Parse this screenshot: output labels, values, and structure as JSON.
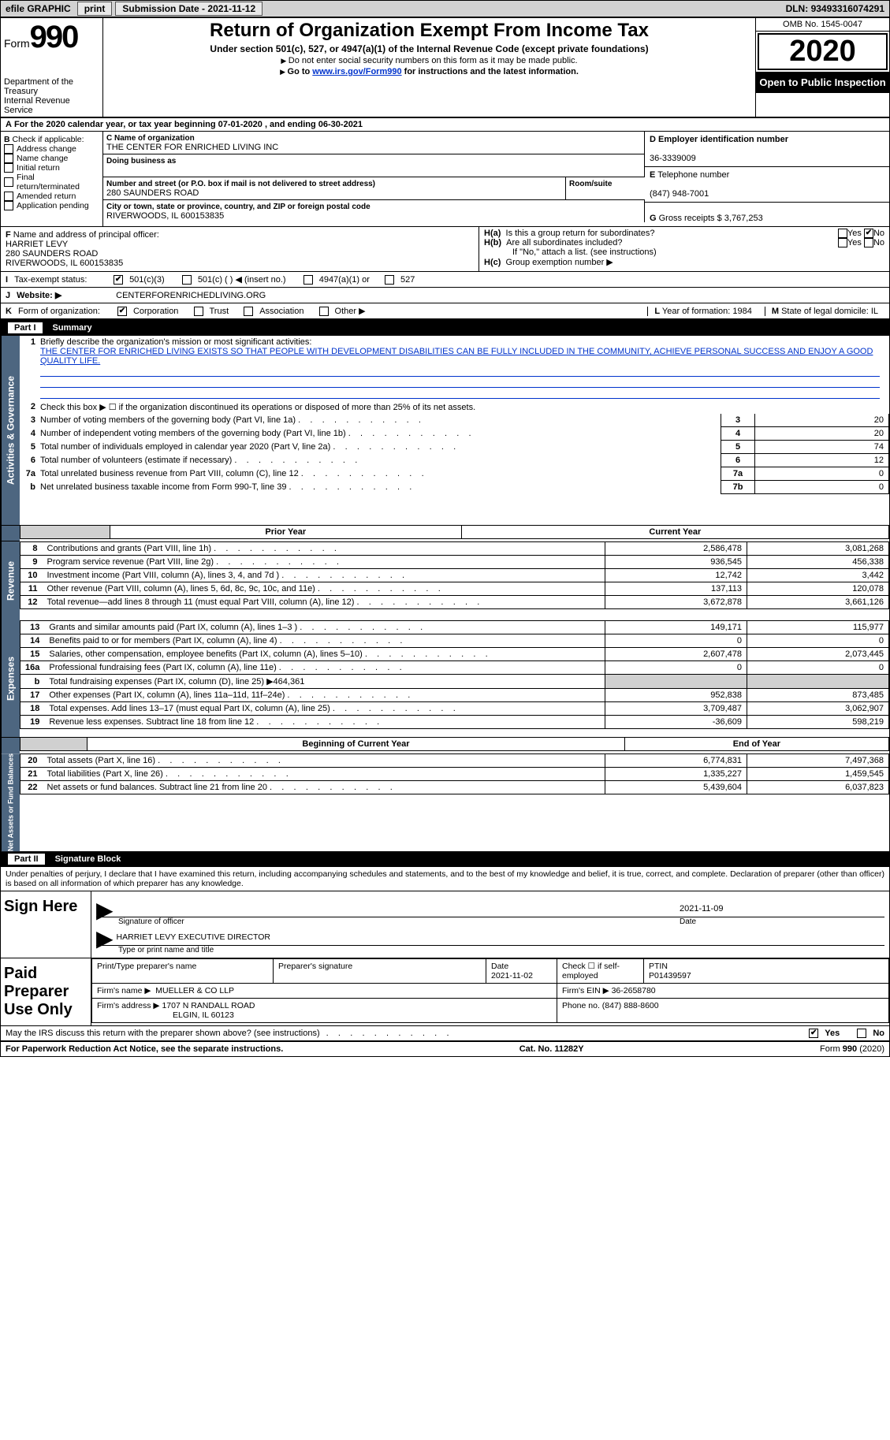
{
  "top_bar": {
    "efile_label": "efile GRAPHIC",
    "print_btn": "print",
    "sub_date_label": "Submission Date - ",
    "sub_date": "2021-11-12",
    "dln_label": "DLN: ",
    "dln": "93493316074291"
  },
  "header": {
    "form_label": "Form",
    "form_num": "990",
    "dept": "Department of the Treasury",
    "irs": "Internal Revenue Service",
    "title": "Return of Organization Exempt From Income Tax",
    "sub1": "Under section 501(c), 527, or 4947(a)(1) of the Internal Revenue Code (except private foundations)",
    "sub2": "Do not enter social security numbers on this form as it may be made public.",
    "sub3_pre": "Go to ",
    "sub3_link": "www.irs.gov/Form990",
    "sub3_post": " for instructions and the latest information.",
    "omb": "OMB No. 1545-0047",
    "tax_year": "2020",
    "open": "Open to Public Inspection"
  },
  "period_line": "For the 2020 calendar year, or tax year beginning 07-01-2020     , and ending 06-30-2021",
  "box_b": {
    "lab": "Check if applicable:",
    "items": [
      "Address change",
      "Name change",
      "Initial return",
      "Final return/terminated",
      "Amended return",
      "Application pending"
    ],
    "b_letter": "B"
  },
  "box_c": {
    "name_lab": "Name of organization",
    "name": "THE CENTER FOR ENRICHED LIVING INC",
    "dba_lab": "Doing business as",
    "addr_lab": "Number and street (or P.O. box if mail is not delivered to street address)",
    "room_lab": "Room/suite",
    "addr": "280 SAUNDERS ROAD",
    "city_lab": "City or town, state or province, country, and ZIP or foreign postal code",
    "city": "RIVERWOODS, IL  600153835",
    "c_letter": "C"
  },
  "box_d": {
    "lab": "Employer identification number",
    "val": "36-3339009",
    "letter": "D"
  },
  "box_e": {
    "lab": "Telephone number",
    "val": "(847) 948-7001",
    "letter": "E"
  },
  "box_g": {
    "lab": "Gross receipts $ ",
    "val": "3,767,253",
    "letter": "G"
  },
  "box_f": {
    "lab": "Name and address of principal officer:",
    "name": "HARRIET LEVY",
    "addr1": "280 SAUNDERS ROAD",
    "addr2": "RIVERWOODS, IL  600153835",
    "letter": "F"
  },
  "box_h": {
    "a_lab": "Is this a group return for subordinates?",
    "a_letter": "H(a)",
    "b_lab": "Are all subordinates included?",
    "b_letter": "H(b)",
    "b_note": "If \"No,\" attach a list. (see instructions)",
    "c_lab": "Group exemption number ▶",
    "c_letter": "H(c)",
    "yes": "Yes",
    "no": "No"
  },
  "box_i": {
    "letter": "I",
    "lab": "Tax-exempt status:",
    "opts": [
      "501(c)(3)",
      "501(c) (   ) ◀ (insert no.)",
      "4947(a)(1) or",
      "527"
    ]
  },
  "box_j": {
    "letter": "J",
    "lab": "Website: ▶",
    "val": "CENTERFORENRICHEDLIVING.ORG"
  },
  "box_k": {
    "letter": "K",
    "lab": "Form of organization:",
    "opts": [
      "Corporation",
      "Trust",
      "Association",
      "Other ▶"
    ]
  },
  "box_l": {
    "letter": "L",
    "txt": "Year of formation: 1984"
  },
  "box_m": {
    "letter": "M",
    "txt": "State of legal domicile: IL"
  },
  "part1": {
    "part": "Part I",
    "title": "Summary",
    "side1": "Activities & Governance",
    "side2": "Revenue",
    "side3": "Expenses",
    "side4": "Net Assets or Fund Balances",
    "q1": "Briefly describe the organization's mission or most significant activities:",
    "mission": "THE CENTER FOR ENRICHED LIVING EXISTS SO THAT PEOPLE WITH DEVELOPMENT DISABILITIES CAN BE FULLY INCLUDED IN THE COMMUNITY, ACHIEVE PERSONAL SUCCESS AND ENJOY A GOOD QUALITY LIFE.",
    "q2": "Check this box ▶ ☐  if the organization discontinued its operations or disposed of more than 25% of its net assets.",
    "lines_simple": [
      {
        "n": "3",
        "t": "Number of voting members of the governing body (Part VI, line 1a)",
        "box": "3",
        "v": "20",
        "num": "3"
      },
      {
        "n": "4",
        "t": "Number of independent voting members of the governing body (Part VI, line 1b)",
        "box": "4",
        "v": "20",
        "num": "4"
      },
      {
        "n": "5",
        "t": "Total number of individuals employed in calendar year 2020 (Part V, line 2a)",
        "box": "5",
        "v": "74",
        "num": "5"
      },
      {
        "n": "6",
        "t": "Total number of volunteers (estimate if necessary)",
        "box": "6",
        "v": "12",
        "num": "6"
      },
      {
        "n": "7a",
        "t": "Total unrelated business revenue from Part VIII, column (C), line 12",
        "box": "7a",
        "v": "0",
        "num": "7a"
      },
      {
        "n": "",
        "t": "Net unrelated business taxable income from Form 990-T, line 39",
        "box": "7b",
        "v": "0",
        "num": "b"
      }
    ],
    "prior_hdr": "Prior Year",
    "curr_hdr": "Current Year",
    "boy_hdr": "Beginning of Current Year",
    "eoy_hdr": "End of Year",
    "rev": [
      {
        "n": "8",
        "t": "Contributions and grants (Part VIII, line 1h)",
        "p": "2,586,478",
        "c": "3,081,268"
      },
      {
        "n": "9",
        "t": "Program service revenue (Part VIII, line 2g)",
        "p": "936,545",
        "c": "456,338"
      },
      {
        "n": "10",
        "t": "Investment income (Part VIII, column (A), lines 3, 4, and 7d )",
        "p": "12,742",
        "c": "3,442"
      },
      {
        "n": "11",
        "t": "Other revenue (Part VIII, column (A), lines 5, 6d, 8c, 9c, 10c, and 11e)",
        "p": "137,113",
        "c": "120,078"
      },
      {
        "n": "12",
        "t": "Total revenue—add lines 8 through 11 (must equal Part VIII, column (A), line 12)",
        "p": "3,672,878",
        "c": "3,661,126"
      }
    ],
    "exp": [
      {
        "n": "13",
        "t": "Grants and similar amounts paid (Part IX, column (A), lines 1–3 )",
        "p": "149,171",
        "c": "115,977"
      },
      {
        "n": "14",
        "t": "Benefits paid to or for members (Part IX, column (A), line 4)",
        "p": "0",
        "c": "0"
      },
      {
        "n": "15",
        "t": "Salaries, other compensation, employee benefits (Part IX, column (A), lines 5–10)",
        "p": "2,607,478",
        "c": "2,073,445"
      },
      {
        "n": "16a",
        "t": "Professional fundraising fees (Part IX, column (A), line 11e)",
        "p": "0",
        "c": "0"
      },
      {
        "n": "b",
        "t": "Total fundraising expenses (Part IX, column (D), line 25) ▶464,361",
        "p": "",
        "c": "",
        "shade": true
      },
      {
        "n": "17",
        "t": "Other expenses (Part IX, column (A), lines 11a–11d, 11f–24e)",
        "p": "952,838",
        "c": "873,485"
      },
      {
        "n": "18",
        "t": "Total expenses. Add lines 13–17 (must equal Part IX, column (A), line 25)",
        "p": "3,709,487",
        "c": "3,062,907"
      },
      {
        "n": "19",
        "t": "Revenue less expenses. Subtract line 18 from line 12",
        "p": "-36,609",
        "c": "598,219"
      }
    ],
    "na": [
      {
        "n": "20",
        "t": "Total assets (Part X, line 16)",
        "p": "6,774,831",
        "c": "7,497,368"
      },
      {
        "n": "21",
        "t": "Total liabilities (Part X, line 26)",
        "p": "1,335,227",
        "c": "1,459,545"
      },
      {
        "n": "22",
        "t": "Net assets or fund balances. Subtract line 21 from line 20",
        "p": "5,439,604",
        "c": "6,037,823"
      }
    ]
  },
  "part2": {
    "part": "Part II",
    "title": "Signature Block",
    "penalty": "Under penalties of perjury, I declare that I have examined this return, including accompanying schedules and statements, and to the best of my knowledge and belief, it is true, correct, and complete. Declaration of preparer (other than officer) is based on all information of which preparer has any knowledge.",
    "sign_here": "Sign Here",
    "sig_of_officer": "Signature of officer",
    "sig_date": "2021-11-09",
    "date_lab": "Date",
    "officer_name": "HARRIET LEVY  EXECUTIVE DIRECTOR",
    "type_name_lab": "Type or print name and title",
    "paid_prep": "Paid Preparer Use Only",
    "prep_name_lab": "Print/Type preparer's name",
    "prep_sig_lab": "Preparer's signature",
    "prep_date_lab": "Date",
    "prep_date": "2021-11-02",
    "self_emp": "Check ☐ if self-employed",
    "ptin_lab": "PTIN",
    "ptin": "P01439597",
    "firm_name_lab": "Firm's name      ▶",
    "firm_name": "MUELLER & CO LLP",
    "firm_ein_lab": "Firm's EIN ▶",
    "firm_ein": "36-2658780",
    "firm_addr_lab": "Firm's address ▶",
    "firm_addr1": "1707 N RANDALL ROAD",
    "firm_addr2": "ELGIN, IL  60123",
    "phone_lab": "Phone no. ",
    "phone": "(847) 888-8600",
    "discuss": "May the IRS discuss this return with the preparer shown above? (see instructions)",
    "yes": "Yes",
    "no": "No"
  },
  "footer": {
    "pra": "For Paperwork Reduction Act Notice, see the separate instructions.",
    "cat": "Cat. No. 11282Y",
    "form": "Form 990 (2020)"
  },
  "colors": {
    "link": "#0033cc",
    "side_bg": "#4d6680",
    "shade": "#d0d0d0",
    "topbar": "#d2d2d2"
  }
}
